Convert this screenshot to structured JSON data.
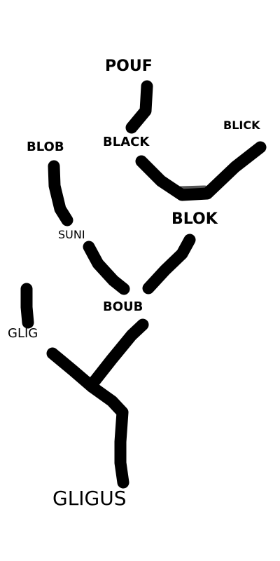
{
  "diagram": {
    "labels": {
      "pouf": "POUF",
      "black": "BLACK",
      "blick": "BLICK",
      "blob": "BLOB",
      "blok": "BLOK",
      "suni": "SUNI",
      "boub": "BOUB",
      "glig": "GLIG",
      "gligus": "GLIGUS"
    },
    "stroke_color": "#000000"
  }
}
